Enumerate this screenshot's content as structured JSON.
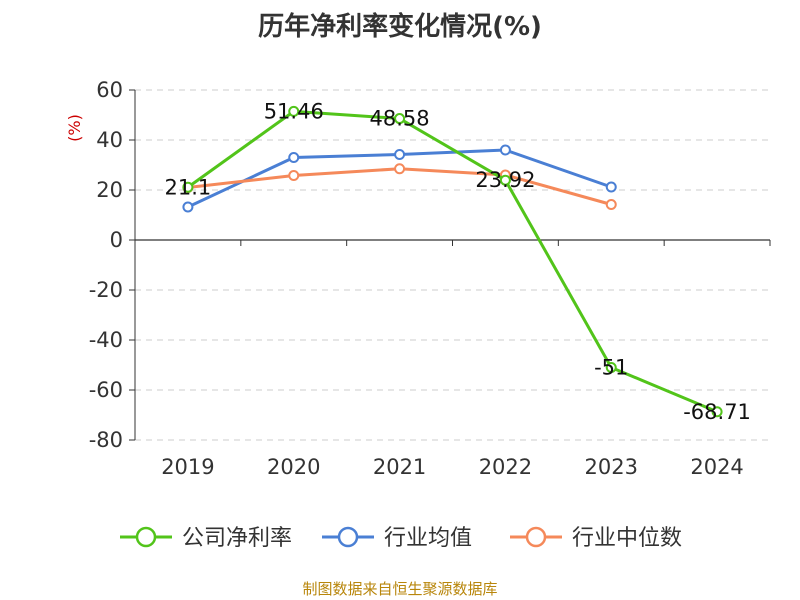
{
  "title": "历年净利率变化情况(%)",
  "source": "制图数据来自恒生聚源数据库",
  "chart_data": {
    "type": "line",
    "title": "历年净利率变化情况(%)",
    "ylabel": "(%)",
    "xlabel": "",
    "ylim": [
      -80,
      60
    ],
    "yticks": [
      60,
      40,
      20,
      0,
      -20,
      -40,
      -60,
      -80
    ],
    "categories": [
      "2019",
      "2020",
      "2021",
      "2022",
      "2023",
      "2024"
    ],
    "grid": true,
    "legend_position": "bottom",
    "series": [
      {
        "name": "公司净利率",
        "color": "#52c41a",
        "values": [
          21.1,
          51.46,
          48.58,
          23.92,
          -51,
          -68.71
        ],
        "labels": [
          "21.1",
          "51.46",
          "48.58",
          "23.92",
          "-51",
          "-68.71"
        ]
      },
      {
        "name": "行业均值",
        "color": "#4a7fd4",
        "values": [
          13.2,
          33.0,
          34.2,
          36.0,
          21.2,
          null
        ],
        "labels": []
      },
      {
        "name": "行业中位数",
        "color": "#f5895a",
        "values": [
          21.0,
          25.8,
          28.5,
          26.0,
          14.2,
          null
        ],
        "labels": []
      }
    ]
  }
}
